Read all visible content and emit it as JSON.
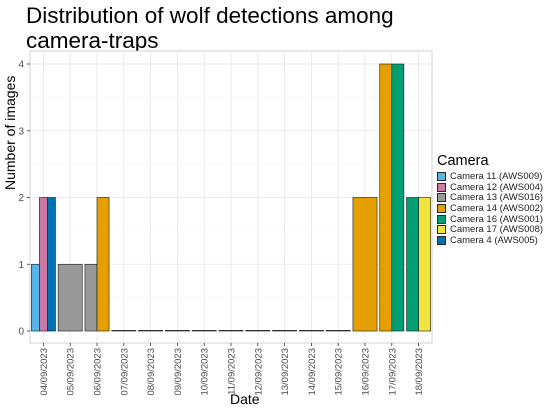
{
  "chart_data": {
    "type": "bar",
    "title": "Distribution of wolf detections among camera-traps",
    "xlabel": "Date",
    "ylabel": "Number of images",
    "ylim": [
      0,
      4.2
    ],
    "yticks": [
      0,
      1,
      2,
      3,
      4
    ],
    "grid": true,
    "legend_position": "right",
    "legend_title": "Camera",
    "categories": [
      "04/09/2023",
      "05/09/2023",
      "06/09/2023",
      "07/09/2023",
      "08/09/2023",
      "09/09/2023",
      "10/09/2023",
      "11/09/2023",
      "12/09/2023",
      "13/09/2023",
      "14/09/2023",
      "15/09/2023",
      "16/09/2023",
      "17/09/2023",
      "18/09/2023"
    ],
    "series": [
      {
        "name": "Camera 11 (AWS009)",
        "color": "#56B4E9"
      },
      {
        "name": "Camera 12 (AWS004)",
        "color": "#CC79A7"
      },
      {
        "name": "Camera 13 (AWS016)",
        "color": "#999999"
      },
      {
        "name": "Camera 14 (AWS002)",
        "color": "#E69F00"
      },
      {
        "name": "Camera 16 (AWS001)",
        "color": "#009E73"
      },
      {
        "name": "Camera 17 (AWS008)",
        "color": "#F0E442"
      },
      {
        "name": "Camera 4 (AWS005)",
        "color": "#0072B2"
      }
    ],
    "bars": [
      {
        "date": "04/09/2023",
        "groups": [
          {
            "camera": "Camera 11 (AWS009)",
            "value": 1
          },
          {
            "camera": "Camera 12 (AWS004)",
            "value": 2
          },
          {
            "camera": "Camera 4 (AWS005)",
            "value": 2
          }
        ]
      },
      {
        "date": "05/09/2023",
        "groups": [
          {
            "camera": "Camera 13 (AWS016)",
            "value": 1
          }
        ]
      },
      {
        "date": "06/09/2023",
        "groups": [
          {
            "camera": "Camera 13 (AWS016)",
            "value": 1
          },
          {
            "camera": "Camera 14 (AWS002)",
            "value": 2
          }
        ]
      },
      {
        "date": "07/09/2023",
        "groups": [
          {
            "camera": "",
            "value": 0
          }
        ]
      },
      {
        "date": "08/09/2023",
        "groups": [
          {
            "camera": "",
            "value": 0
          }
        ]
      },
      {
        "date": "09/09/2023",
        "groups": [
          {
            "camera": "",
            "value": 0
          }
        ]
      },
      {
        "date": "10/09/2023",
        "groups": [
          {
            "camera": "",
            "value": 0
          }
        ]
      },
      {
        "date": "11/09/2023",
        "groups": [
          {
            "camera": "",
            "value": 0
          }
        ]
      },
      {
        "date": "12/09/2023",
        "groups": [
          {
            "camera": "",
            "value": 0
          }
        ]
      },
      {
        "date": "13/09/2023",
        "groups": [
          {
            "camera": "",
            "value": 0
          }
        ]
      },
      {
        "date": "14/09/2023",
        "groups": [
          {
            "camera": "",
            "value": 0
          }
        ]
      },
      {
        "date": "15/09/2023",
        "groups": [
          {
            "camera": "",
            "value": 0
          }
        ]
      },
      {
        "date": "16/09/2023",
        "groups": [
          {
            "camera": "Camera 14 (AWS002)",
            "value": 2
          }
        ]
      },
      {
        "date": "17/09/2023",
        "groups": [
          {
            "camera": "Camera 14 (AWS002)",
            "value": 4
          },
          {
            "camera": "Camera 16 (AWS001)",
            "value": 4
          }
        ]
      },
      {
        "date": "18/09/2023",
        "groups": [
          {
            "camera": "Camera 16 (AWS001)",
            "value": 2
          },
          {
            "camera": "Camera 17 (AWS008)",
            "value": 2
          }
        ]
      }
    ]
  }
}
